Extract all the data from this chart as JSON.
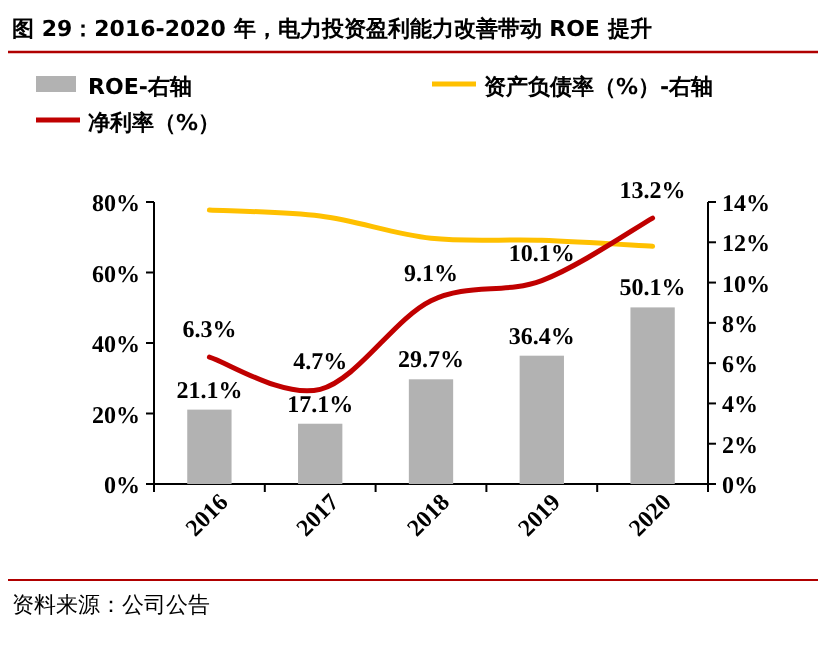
{
  "chart_data": {
    "type": "bar",
    "title": "图 29：2016-2020 年，电力投资盈利能力改善带动 ROE 提升",
    "categories": [
      "2016",
      "2017",
      "2018",
      "2019",
      "2020"
    ],
    "series": [
      {
        "name": "ROE-右轴",
        "color": "#b2b2b2",
        "values": [
          21.1,
          17.1,
          29.7,
          36.4,
          50.1
        ],
        "value_labels": [
          "21.1%",
          "17.1%",
          "29.7%",
          "36.4%",
          "50.1%"
        ]
      },
      {
        "name": "资产负债率（%）-右轴",
        "type": "line",
        "axis": "y2",
        "color": "#ffc000",
        "values": [
          13.6,
          13.3,
          12.2,
          12.1,
          11.8
        ]
      },
      {
        "name": "净利率（%）",
        "type": "line",
        "axis": "y2",
        "color": "#c00000",
        "values": [
          6.3,
          4.7,
          9.1,
          10.1,
          13.2
        ],
        "value_labels": [
          "6.3%",
          "4.7%",
          "9.1%",
          "10.1%",
          "13.2%"
        ]
      }
    ],
    "ylim": [
      0,
      80
    ],
    "yticks": [
      {
        "value": 0,
        "label": "0%"
      },
      {
        "value": 20,
        "label": "20%"
      },
      {
        "value": 40,
        "label": "40%"
      },
      {
        "value": 60,
        "label": "60%"
      },
      {
        "value": 80,
        "label": "80%"
      }
    ],
    "y2lim": [
      0,
      14
    ],
    "y2ticks": [
      {
        "value": 0,
        "label": "0%"
      },
      {
        "value": 2,
        "label": "2%"
      },
      {
        "value": 4,
        "label": "4%"
      },
      {
        "value": 6,
        "label": "6%"
      },
      {
        "value": 8,
        "label": "8%"
      },
      {
        "value": 10,
        "label": "10%"
      },
      {
        "value": 12,
        "label": "12%"
      },
      {
        "value": 14,
        "label": "14%"
      }
    ],
    "legend": "top",
    "annotations": [
      "资料来源：公司公告"
    ]
  }
}
